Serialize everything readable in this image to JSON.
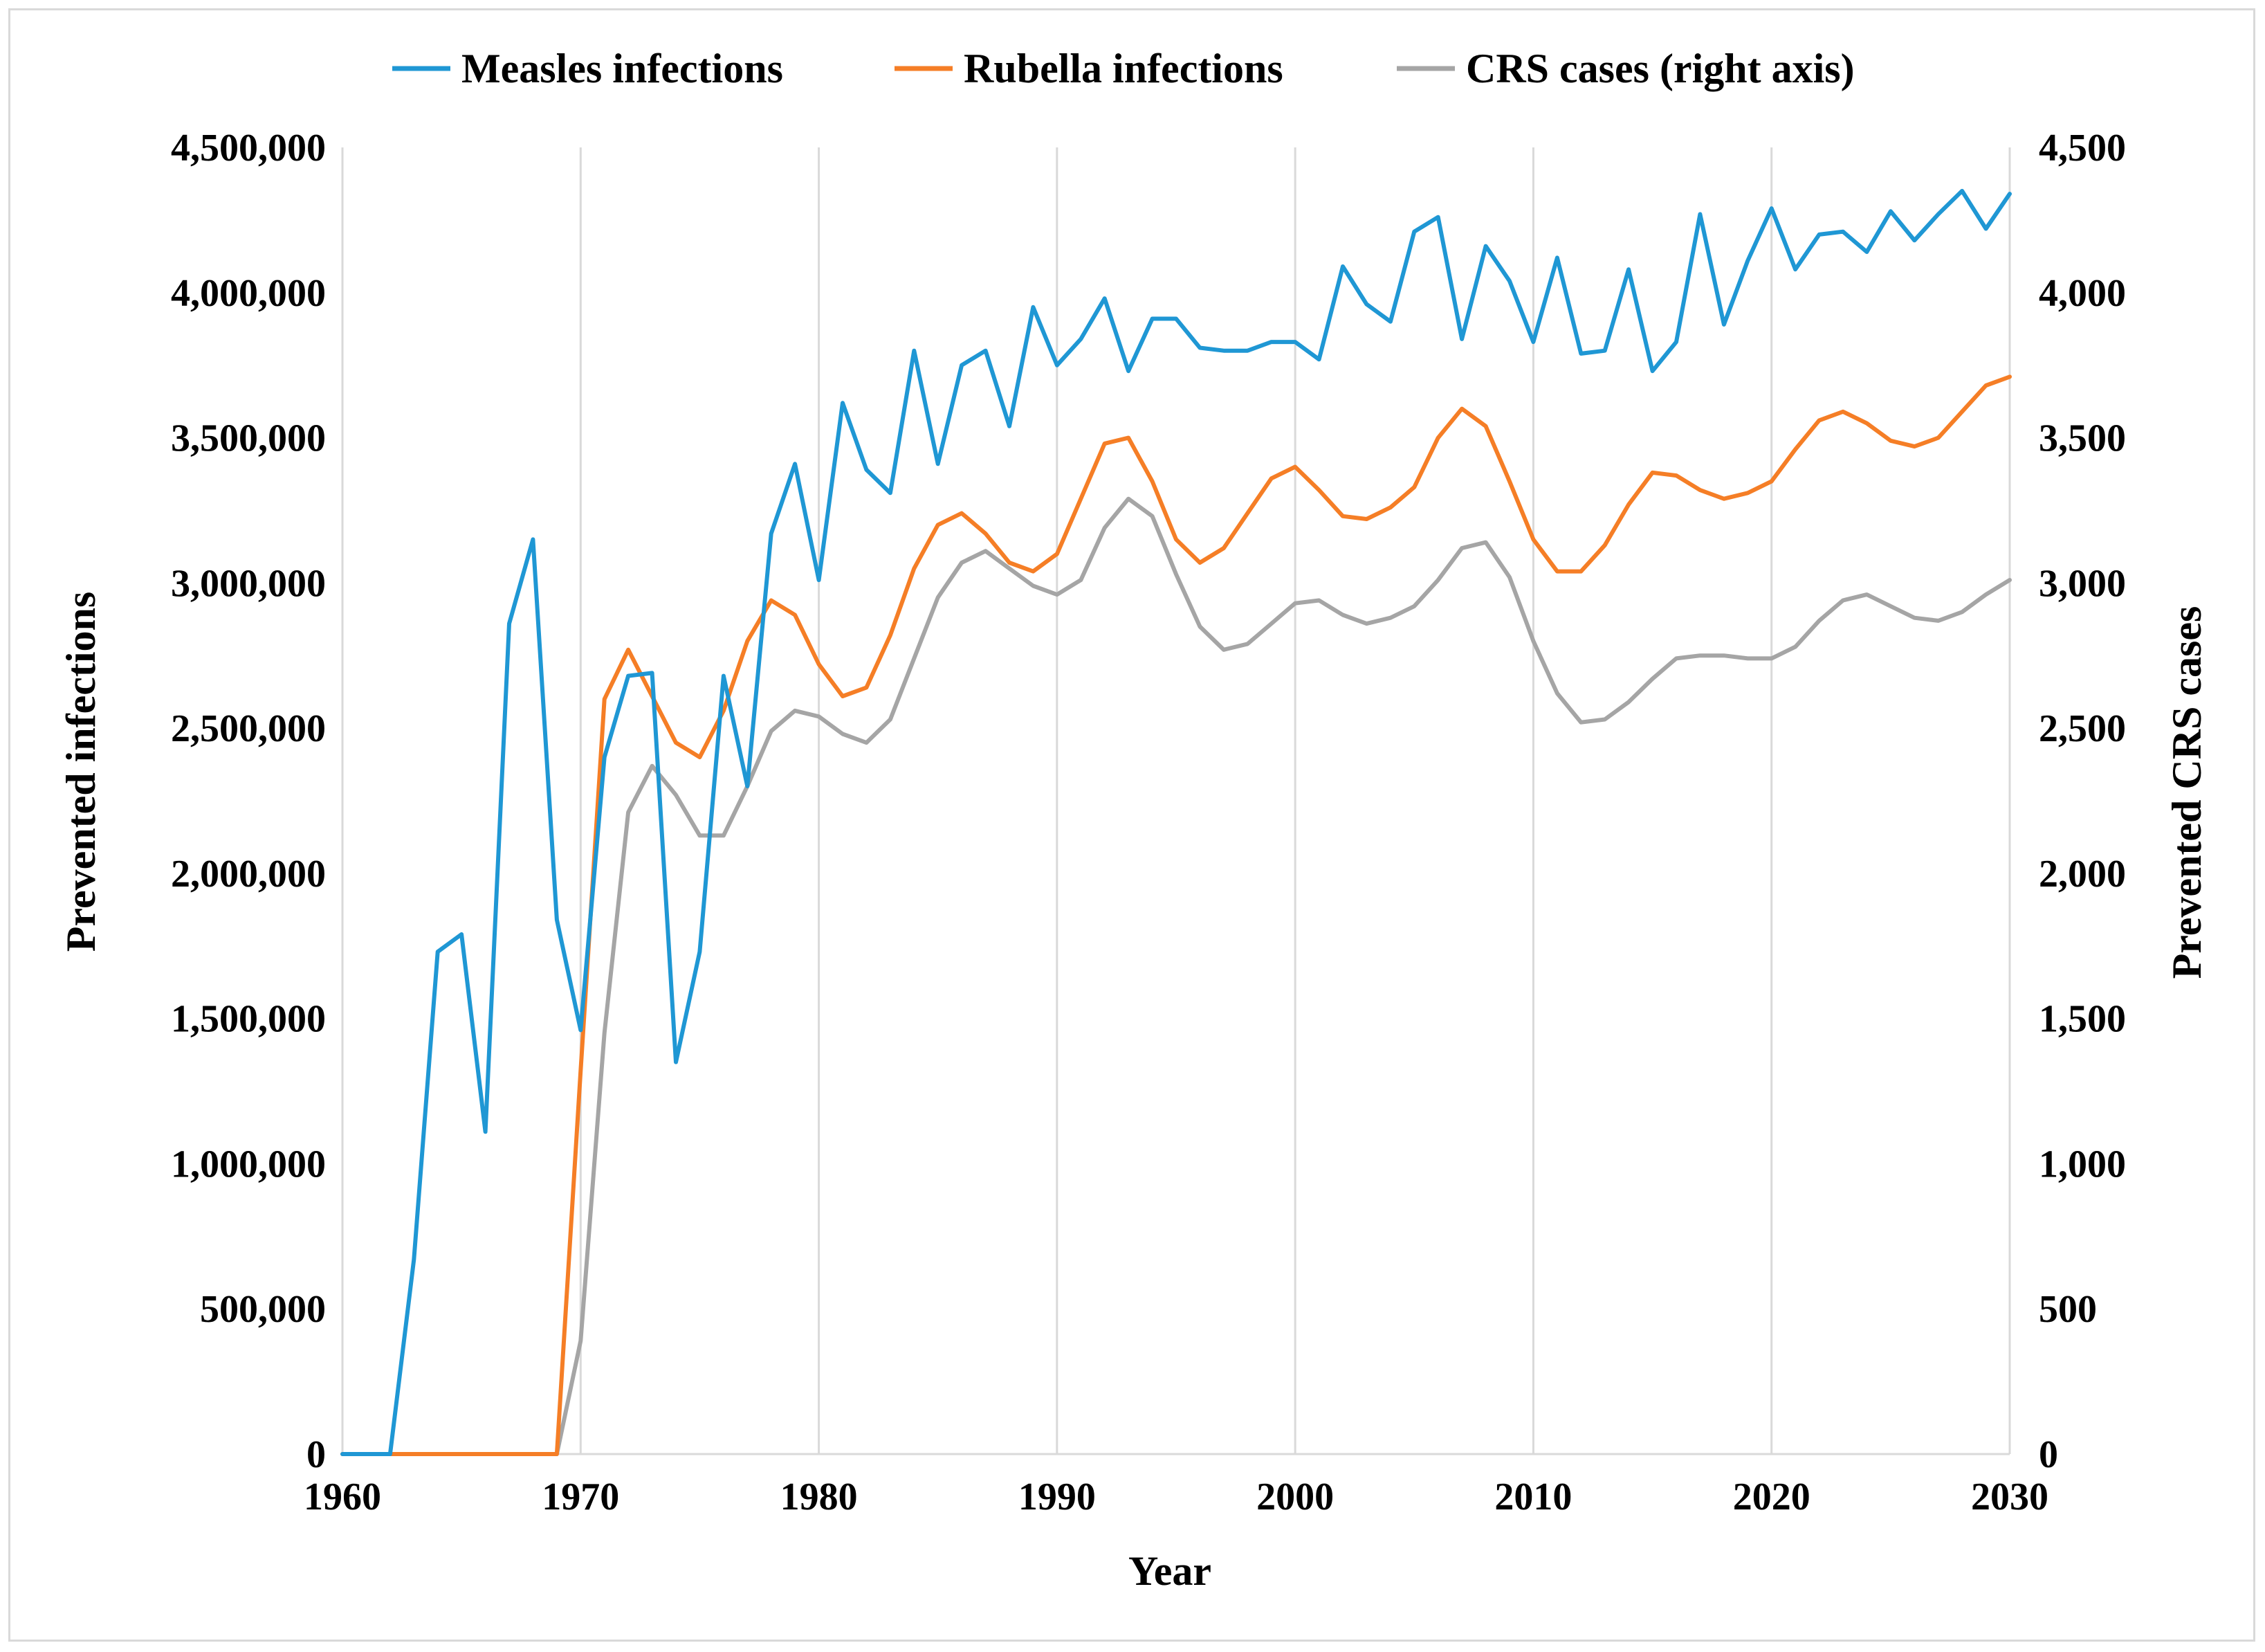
{
  "chart_data": {
    "type": "line",
    "title": "",
    "xlabel": "Year",
    "ylabel_left": "Prevented infections",
    "ylabel_right": "Prevented CRS cases",
    "xlim": [
      1960,
      2030
    ],
    "ylim_left": [
      0,
      4500000
    ],
    "ylim_right": [
      0,
      4500
    ],
    "grid": "vertical",
    "legend_position": "top",
    "x_ticks": [
      "1960",
      "1970",
      "1980",
      "1990",
      "2000",
      "2010",
      "2020",
      "2030"
    ],
    "y_ticks_left": [
      "0",
      "500,000",
      "1,000,000",
      "1,500,000",
      "2,000,000",
      "2,500,000",
      "3,000,000",
      "3,500,000",
      "4,000,000",
      "4,500,000"
    ],
    "y_ticks_right": [
      "0",
      "500",
      "1,000",
      "1,500",
      "2,000",
      "2,500",
      "3,000",
      "3,500",
      "4,000",
      "4,500"
    ],
    "series": [
      {
        "name": "Measles infections",
        "axis": "left",
        "color": "#1f97d4",
        "x": [
          1960,
          1961,
          1962,
          1963,
          1964,
          1965,
          1966,
          1967,
          1968,
          1969,
          1970,
          1971,
          1972,
          1973,
          1974,
          1975,
          1976,
          1977,
          1978,
          1979,
          1980,
          1981,
          1982,
          1983,
          1984,
          1985,
          1986,
          1987,
          1988,
          1989,
          1990,
          1991,
          1992,
          1993,
          1994,
          1995,
          1996,
          1997,
          1998,
          1999,
          2000,
          2001,
          2002,
          2003,
          2004,
          2005,
          2006,
          2007,
          2008,
          2009,
          2010,
          2011,
          2012,
          2013,
          2014,
          2015,
          2016,
          2017,
          2018,
          2019,
          2020,
          2021,
          2022,
          2023,
          2024,
          2025,
          2026,
          2027,
          2028,
          2029,
          2030
        ],
        "values": [
          0,
          0,
          0,
          670000,
          1730000,
          1790000,
          1110000,
          2860000,
          3150000,
          1840000,
          1460000,
          2400000,
          2680000,
          2690000,
          1350000,
          1730000,
          2680000,
          2300000,
          3170000,
          3410000,
          3010000,
          3620000,
          3390000,
          3310000,
          3800000,
          3410000,
          3750000,
          3800000,
          3540000,
          3950000,
          3750000,
          3840000,
          3980000,
          3730000,
          3910000,
          3910000,
          3810000,
          3800000,
          3800000,
          3830000,
          3830000,
          3770000,
          4090000,
          3960000,
          3900000,
          4210000,
          4260000,
          3840000,
          4160000,
          4040000,
          3830000,
          4120000,
          3790000,
          3800000,
          4080000,
          3730000,
          3830000,
          4270000,
          3890000,
          4110000,
          4290000,
          4080000,
          4200000,
          4210000,
          4140000,
          4280000,
          4180000,
          4270000,
          4350000,
          4220000,
          4340000
        ]
      },
      {
        "name": "Rubella infections",
        "axis": "left",
        "color": "#f57e26",
        "x": [
          1960,
          1961,
          1962,
          1963,
          1964,
          1965,
          1966,
          1967,
          1968,
          1969,
          1970,
          1971,
          1972,
          1973,
          1974,
          1975,
          1976,
          1977,
          1978,
          1979,
          1980,
          1981,
          1982,
          1983,
          1984,
          1985,
          1986,
          1987,
          1988,
          1989,
          1990,
          1991,
          1992,
          1993,
          1994,
          1995,
          1996,
          1997,
          1998,
          1999,
          2000,
          2001,
          2002,
          2003,
          2004,
          2005,
          2006,
          2007,
          2008,
          2009,
          2010,
          2011,
          2012,
          2013,
          2014,
          2015,
          2016,
          2017,
          2018,
          2019,
          2020,
          2021,
          2022,
          2023,
          2024,
          2025,
          2026,
          2027,
          2028,
          2029,
          2030
        ],
        "values": [
          0,
          0,
          0,
          0,
          0,
          0,
          0,
          0,
          0,
          0,
          1320000,
          2600000,
          2770000,
          2610000,
          2450000,
          2400000,
          2560000,
          2800000,
          2940000,
          2890000,
          2720000,
          2610000,
          2640000,
          2820000,
          3050000,
          3200000,
          3240000,
          3170000,
          3070000,
          3040000,
          3100000,
          3290000,
          3480000,
          3500000,
          3350000,
          3150000,
          3070000,
          3120000,
          3240000,
          3360000,
          3400000,
          3320000,
          3230000,
          3220000,
          3260000,
          3330000,
          3500000,
          3600000,
          3540000,
          3350000,
          3150000,
          3040000,
          3040000,
          3130000,
          3270000,
          3380000,
          3370000,
          3320000,
          3290000,
          3310000,
          3350000,
          3460000,
          3560000,
          3590000,
          3550000,
          3490000,
          3470000,
          3500000,
          3590000,
          3680000,
          3710000
        ]
      },
      {
        "name": "CRS cases (right axis)",
        "axis": "right",
        "color": "#a5a5a5",
        "x": [
          1960,
          1961,
          1962,
          1963,
          1964,
          1965,
          1966,
          1967,
          1968,
          1969,
          1970,
          1971,
          1972,
          1973,
          1974,
          1975,
          1976,
          1977,
          1978,
          1979,
          1980,
          1981,
          1982,
          1983,
          1984,
          1985,
          1986,
          1987,
          1988,
          1989,
          1990,
          1991,
          1992,
          1993,
          1994,
          1995,
          1996,
          1997,
          1998,
          1999,
          2000,
          2001,
          2002,
          2003,
          2004,
          2005,
          2006,
          2007,
          2008,
          2009,
          2010,
          2011,
          2012,
          2013,
          2014,
          2015,
          2016,
          2017,
          2018,
          2019,
          2020,
          2021,
          2022,
          2023,
          2024,
          2025,
          2026,
          2027,
          2028,
          2029,
          2030
        ],
        "values": [
          0,
          0,
          0,
          0,
          0,
          0,
          0,
          0,
          0,
          0,
          390,
          1450,
          2210,
          2370,
          2270,
          2130,
          2130,
          2300,
          2490,
          2560,
          2540,
          2480,
          2450,
          2530,
          2740,
          2950,
          3070,
          3110,
          3050,
          2990,
          2960,
          3010,
          3190,
          3290,
          3230,
          3030,
          2850,
          2770,
          2790,
          2860,
          2930,
          2940,
          2890,
          2860,
          2880,
          2920,
          3010,
          3120,
          3140,
          3020,
          2800,
          2620,
          2520,
          2530,
          2590,
          2670,
          2740,
          2750,
          2750,
          2740,
          2740,
          2780,
          2870,
          2940,
          2960,
          2920,
          2880,
          2870,
          2900,
          2960,
          3010
        ]
      }
    ]
  }
}
